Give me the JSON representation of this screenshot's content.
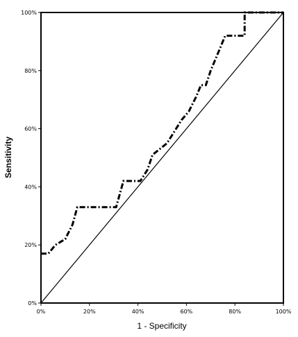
{
  "chart_data": {
    "type": "line",
    "xlabel": "1 - Specificity",
    "ylabel": "Sensitivity",
    "xlim": [
      0,
      100
    ],
    "ylim": [
      0,
      100
    ],
    "x_ticks": [
      "0%",
      "20%",
      "40%",
      "60%",
      "80%",
      "100%"
    ],
    "y_ticks": [
      "0%",
      "20%",
      "40%",
      "60%",
      "80%",
      "100%"
    ],
    "grid": false,
    "series": [
      {
        "style": "dash-dot",
        "color": "#000000",
        "x": [
          0,
          3,
          6,
          10,
          13,
          15,
          31,
          34,
          41,
          44,
          46,
          52,
          58,
          61,
          64,
          66,
          68,
          70,
          73,
          76,
          84,
          84,
          100
        ],
        "y": [
          17,
          17,
          20,
          22,
          27,
          33,
          33,
          42,
          42,
          46,
          51,
          55,
          63,
          66,
          71,
          75,
          75,
          80,
          86,
          92,
          92,
          100,
          100
        ]
      },
      {
        "style": "solid",
        "color": "#000000",
        "x": [
          0,
          100
        ],
        "y": [
          0,
          100
        ]
      }
    ]
  }
}
